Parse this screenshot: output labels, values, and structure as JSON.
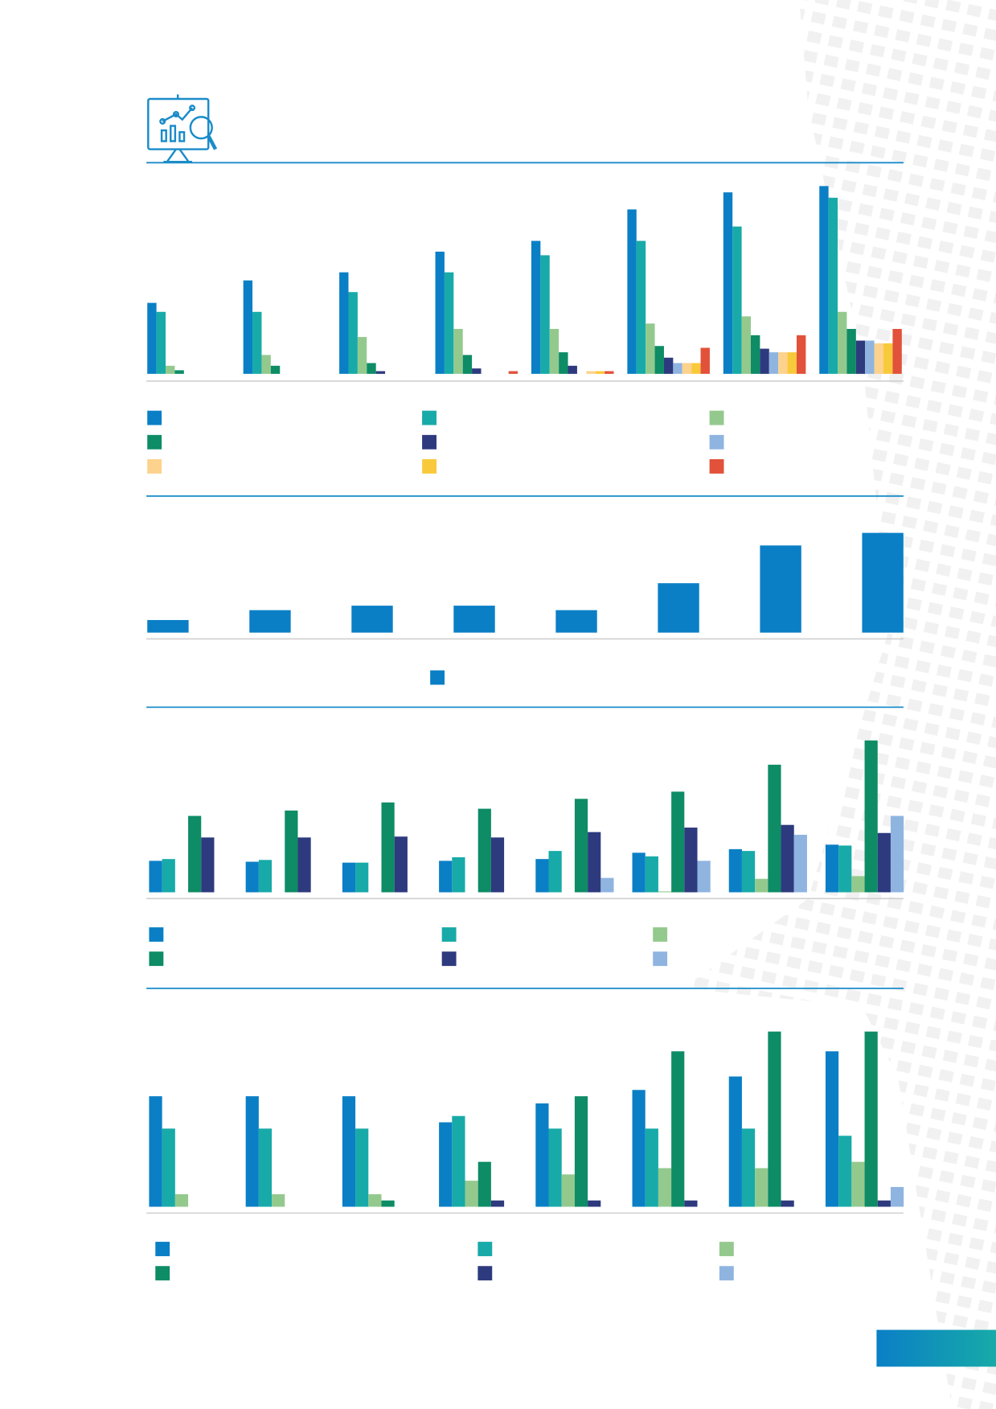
{
  "chart_data": [
    {
      "type": "bar",
      "categories": [
        null,
        null,
        null,
        null,
        null,
        null,
        null,
        null
      ],
      "ylim": [
        0,
        220
      ],
      "series": [
        {
          "color": "#0a7fc6",
          "values": [
            79,
            104,
            113,
            136,
            148,
            183,
            202,
            209
          ]
        },
        {
          "color": "#17aaa8",
          "values": [
            69,
            69,
            91,
            113,
            132,
            148,
            164,
            196
          ]
        },
        {
          "color": "#94c98e",
          "values": [
            9,
            21,
            41,
            50,
            50,
            56,
            64,
            69
          ]
        },
        {
          "color": "#0d8c66",
          "values": [
            4,
            9,
            12,
            21,
            24,
            31,
            43,
            50
          ]
        },
        {
          "color": "#2e3a7e",
          "values": [
            0,
            0,
            3,
            6,
            9,
            18,
            28,
            37
          ]
        },
        {
          "color": "#8fb4e0",
          "values": [
            0,
            0,
            0,
            0,
            0,
            12,
            24,
            37
          ]
        },
        {
          "color": "#fdd28c",
          "values": [
            0,
            0,
            0,
            0,
            3,
            12,
            24,
            34
          ]
        },
        {
          "color": "#f9c93c",
          "values": [
            0,
            0,
            0,
            0,
            3,
            12,
            24,
            34
          ]
        },
        {
          "color": "#e2513a",
          "values": [
            0,
            0,
            0,
            3,
            3,
            29,
            43,
            50
          ]
        }
      ]
    },
    {
      "type": "bar",
      "categories": [
        null,
        null,
        null,
        null,
        null,
        null,
        null,
        null
      ],
      "ylim": [
        0,
        120
      ],
      "series": [
        {
          "color": "#0a7fc6",
          "values": [
            14,
            25,
            30,
            30,
            25,
            55,
            97,
            111
          ]
        }
      ]
    },
    {
      "type": "bar",
      "categories": [
        null,
        null,
        null,
        null,
        null,
        null,
        null,
        null
      ],
      "ylim": [
        0,
        180
      ],
      "series": [
        {
          "color": "#0a7fc6",
          "values": [
            35,
            34,
            33,
            35,
            37,
            44,
            48,
            53
          ]
        },
        {
          "color": "#17aaa8",
          "values": [
            37,
            36,
            33,
            39,
            46,
            40,
            46,
            52
          ]
        },
        {
          "color": "#94c98e",
          "values": [
            0,
            0,
            0,
            0,
            0,
            1,
            15,
            18
          ]
        },
        {
          "color": "#0d8c66",
          "values": [
            85,
            91,
            100,
            93,
            104,
            112,
            142,
            169
          ]
        },
        {
          "color": "#2e3a7e",
          "values": [
            61,
            61,
            62,
            61,
            67,
            72,
            75,
            66
          ]
        },
        {
          "color": "#8fb4e0",
          "values": [
            0,
            0,
            0,
            0,
            16,
            35,
            64,
            85
          ]
        }
      ]
    },
    {
      "type": "bar",
      "categories": [
        null,
        null,
        null,
        null,
        null,
        null,
        null,
        null
      ],
      "ylim": [
        0,
        200
      ],
      "series": [
        {
          "color": "#0a7fc6",
          "values": [
            123,
            123,
            123,
            94,
            115,
            130,
            145,
            173
          ]
        },
        {
          "color": "#17aaa8",
          "values": [
            87,
            87,
            87,
            101,
            87,
            87,
            87,
            79
          ]
        },
        {
          "color": "#94c98e",
          "values": [
            14,
            14,
            14,
            29,
            36,
            43,
            43,
            50
          ]
        },
        {
          "color": "#0d8c66",
          "values": [
            0,
            0,
            7,
            50,
            123,
            173,
            195,
            195
          ]
        },
        {
          "color": "#2e3a7e",
          "values": [
            0,
            0,
            0,
            7,
            7,
            7,
            7,
            7
          ]
        },
        {
          "color": "#8fb4e0",
          "values": [
            0,
            0,
            0,
            0,
            0,
            0,
            0,
            22
          ]
        }
      ]
    }
  ]
}
